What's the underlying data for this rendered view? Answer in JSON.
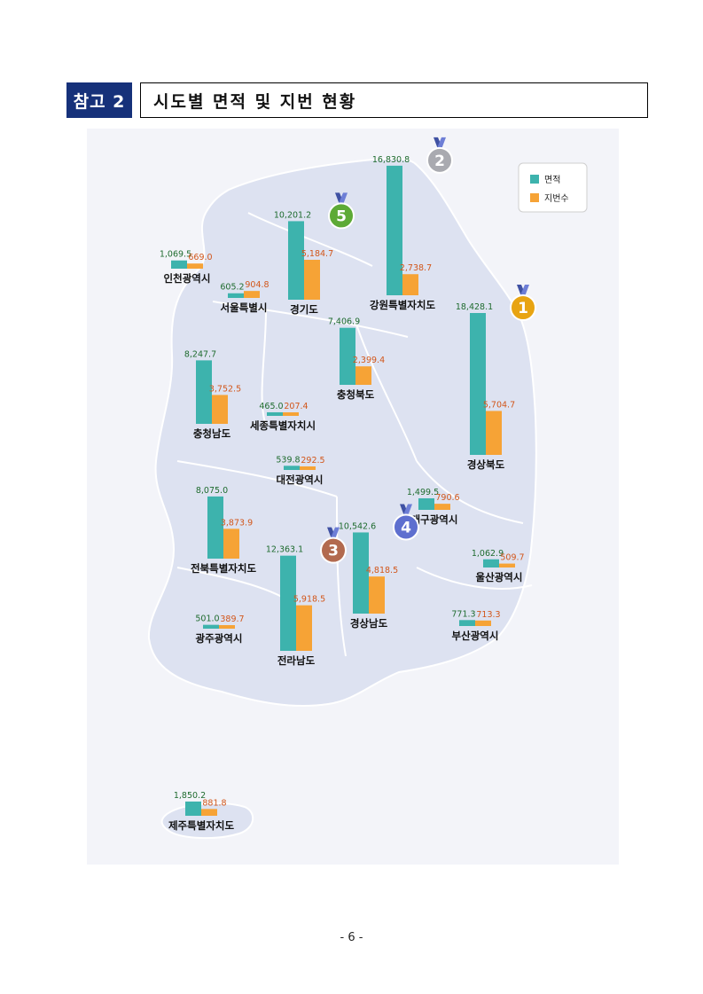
{
  "header": {
    "badge": "참고 2",
    "title": "시도별 면적 및 지번 현황"
  },
  "footer": {
    "page": "- 6 -"
  },
  "colors": {
    "area": "#3db3ad",
    "lots": "#f6a336",
    "area_label": "#1e6b2e",
    "lots_label": "#d2561a",
    "map": "#dde2f1"
  },
  "chart_data": {
    "type": "bar",
    "series": [
      {
        "name": "면적",
        "key": "area"
      },
      {
        "name": "지번수",
        "key": "lots"
      }
    ],
    "legend_position": "top-right",
    "regions": [
      {
        "name": "강원특별자치도",
        "area": 16830.8,
        "lots": 2738.7,
        "area_label": "16,830.8",
        "lots_label": "2,738.7",
        "rank": "2"
      },
      {
        "name": "경기도",
        "area": 10201.2,
        "lots": 5184.7,
        "area_label": "10,201.2",
        "lots_label": "5,184.7",
        "rank": "5"
      },
      {
        "name": "인천광역시",
        "area": 1069.5,
        "lots": 669.0,
        "area_label": "1,069.5",
        "lots_label": "669.0"
      },
      {
        "name": "서울특별시",
        "area": 605.2,
        "lots": 904.8,
        "area_label": "605.2",
        "lots_label": "904.8"
      },
      {
        "name": "경상북도",
        "area": 18428.1,
        "lots": 5704.7,
        "area_label": "18,428.1",
        "lots_label": "5,704.7",
        "rank": "1"
      },
      {
        "name": "충청북도",
        "area": 7406.9,
        "lots": 2399.4,
        "area_label": "7,406.9",
        "lots_label": "2,399.4"
      },
      {
        "name": "충청남도",
        "area": 8247.7,
        "lots": 3752.5,
        "area_label": "8,247.7",
        "lots_label": "3,752.5"
      },
      {
        "name": "세종특별자치시",
        "area": 465.0,
        "lots": 207.4,
        "area_label": "465.0",
        "lots_label": "207.4"
      },
      {
        "name": "대전광역시",
        "area": 539.8,
        "lots": 292.5,
        "area_label": "539.8",
        "lots_label": "292.5"
      },
      {
        "name": "대구광역시",
        "area": 1499.5,
        "lots": 790.6,
        "area_label": "1,499.5",
        "lots_label": "790.6"
      },
      {
        "name": "전북특별자치도",
        "area": 8075.0,
        "lots": 3873.9,
        "area_label": "8,075.0",
        "lots_label": "3,873.9"
      },
      {
        "name": "경상남도",
        "area": 10542.6,
        "lots": 4818.5,
        "area_label": "10,542.6",
        "lots_label": "4,818.5",
        "rank": "4"
      },
      {
        "name": "전라남도",
        "area": 12363.1,
        "lots": 5918.5,
        "area_label": "12,363.1",
        "lots_label": "5,918.5",
        "rank": "3"
      },
      {
        "name": "울산광역시",
        "area": 1062.9,
        "lots": 509.7,
        "area_label": "1,062.9",
        "lots_label": "509.7"
      },
      {
        "name": "광주광역시",
        "area": 501.0,
        "lots": 389.7,
        "area_label": "501.0",
        "lots_label": "389.7"
      },
      {
        "name": "부산광역시",
        "area": 771.3,
        "lots": 713.3,
        "area_label": "771.3",
        "lots_label": "713.3"
      },
      {
        "name": "제주특별자치도",
        "area": 1850.2,
        "lots": 881.8,
        "area_label": "1,850.2",
        "lots_label": "881.8"
      }
    ]
  }
}
